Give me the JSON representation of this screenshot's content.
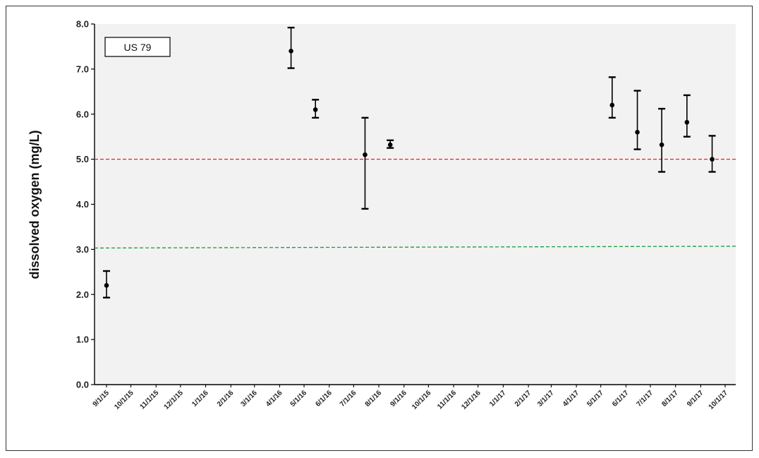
{
  "chart_data": {
    "type": "scatter",
    "title": "",
    "xlabel": "",
    "ylabel": "dissolved  oxygen  (mg/L)",
    "ylim": [
      0,
      8
    ],
    "yticks": [
      0,
      1,
      2,
      3,
      4,
      5,
      6,
      7,
      8
    ],
    "ytick_labels": [
      "0.0",
      "1.0",
      "2.0",
      "3.0",
      "4.0",
      "5.0",
      "6.0",
      "7.0",
      "8.0"
    ],
    "xlim": [
      "2015-09-01",
      "2017-10-01"
    ],
    "xticks": [
      "2015-09-01",
      "2015-10-01",
      "2015-11-01",
      "2015-12-01",
      "2016-01-01",
      "2016-02-01",
      "2016-03-01",
      "2016-04-01",
      "2016-05-01",
      "2016-06-01",
      "2016-07-01",
      "2016-08-01",
      "2016-09-01",
      "2016-10-01",
      "2016-11-01",
      "2016-12-01",
      "2017-01-01",
      "2017-02-01",
      "2017-03-01",
      "2017-04-01",
      "2017-05-01",
      "2017-06-01",
      "2017-07-01",
      "2017-08-01",
      "2017-09-01",
      "2017-10-01"
    ],
    "xtick_labels": [
      "9/1/15",
      "10/1/15",
      "11/1/15",
      "12/1/15",
      "1/1/16",
      "2/1/16",
      "3/1/16",
      "4/1/16",
      "5/1/16",
      "6/1/16",
      "7/1/16",
      "8/1/16",
      "9/1/16",
      "10/1/16",
      "11/1/16",
      "12/1/16",
      "1/1/17",
      "2/1/17",
      "3/1/17",
      "4/1/17",
      "5/1/17",
      "6/1/17",
      "7/1/17",
      "8/1/17",
      "9/1/17",
      "10/1/17"
    ],
    "grid": false,
    "legend": {
      "text": "US 79",
      "placement": "top-left"
    },
    "series": [
      {
        "marker": "circle",
        "color": "#000000",
        "points": [
          {
            "x": "2015-09-01",
            "y": 2.2,
            "low": 1.93,
            "high": 2.52
          },
          {
            "x": "2016-04-15",
            "y": 7.4,
            "low": 7.02,
            "high": 7.92
          },
          {
            "x": "2016-05-15",
            "y": 6.1,
            "low": 5.92,
            "high": 6.32
          },
          {
            "x": "2016-07-15",
            "y": 5.1,
            "low": 3.9,
            "high": 5.92
          },
          {
            "x": "2016-08-15",
            "y": 5.32,
            "low": 5.25,
            "high": 5.42
          },
          {
            "x": "2017-05-15",
            "y": 6.2,
            "low": 5.92,
            "high": 6.82
          },
          {
            "x": "2017-06-15",
            "y": 5.6,
            "low": 5.22,
            "high": 6.52
          },
          {
            "x": "2017-07-15",
            "y": 5.32,
            "low": 4.72,
            "high": 6.12
          },
          {
            "x": "2017-08-15",
            "y": 5.82,
            "low": 5.5,
            "high": 6.42
          },
          {
            "x": "2017-09-15",
            "y": 5.0,
            "low": 4.72,
            "high": 5.52
          }
        ]
      }
    ],
    "reference_lines": [
      {
        "y_start": 5.0,
        "y_end": 5.0,
        "color": "#e8202a",
        "style": "dashed"
      },
      {
        "y_start": 3.03,
        "y_end": 3.07,
        "color": "#1a9a3a",
        "style": "dashed"
      }
    ],
    "colors": {
      "plot_background": "#f2f2f2",
      "axis": "#000000",
      "marker": "#000000"
    }
  }
}
